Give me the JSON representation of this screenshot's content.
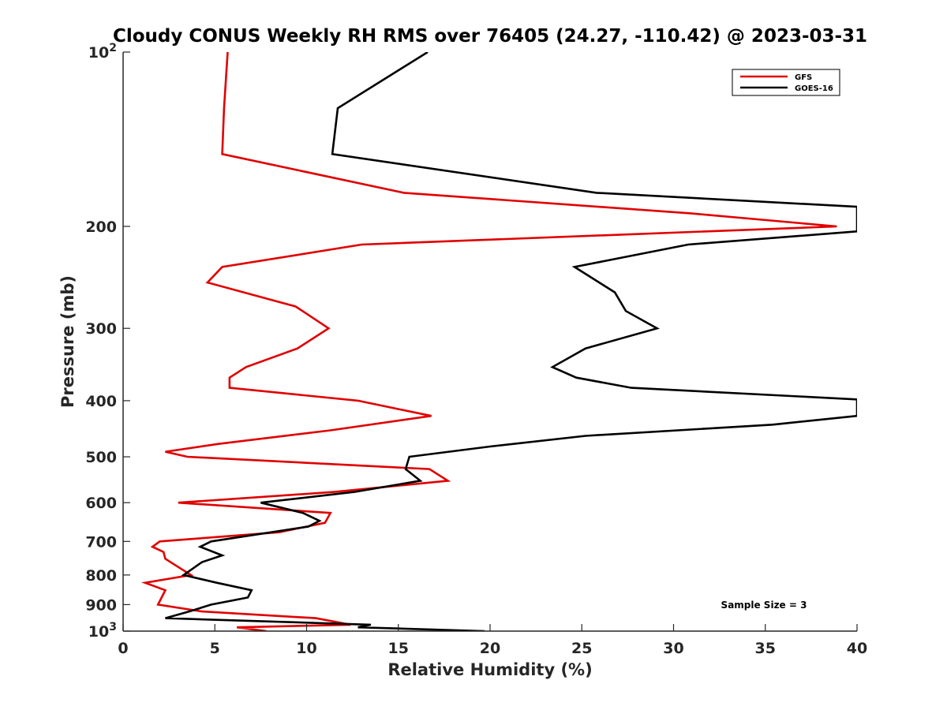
{
  "chart_data": {
    "type": "line",
    "title": "Cloudy CONUS Weekly RH RMS over 76405 (24.27, -110.42) @ 2023-03-31",
    "xlabel": "Relative Humidity (%)",
    "ylabel": "Pressure (mb)",
    "xlim": [
      0,
      40
    ],
    "ylim": [
      100,
      1000
    ],
    "y_scale": "log",
    "y_reversed": true,
    "x_ticks": [
      "0",
      "5",
      "10",
      "15",
      "20",
      "25",
      "30",
      "35",
      "40"
    ],
    "y_ticks": [
      {
        "value": 100,
        "base": "10",
        "exp": "2"
      },
      {
        "value": 200,
        "label": "200"
      },
      {
        "value": 300,
        "label": "300"
      },
      {
        "value": 400,
        "label": "400"
      },
      {
        "value": 500,
        "label": "500"
      },
      {
        "value": 600,
        "label": "600"
      },
      {
        "value": 700,
        "label": "700"
      },
      {
        "value": 800,
        "label": "800"
      },
      {
        "value": 900,
        "label": "900"
      },
      {
        "value": 1000,
        "base": "10",
        "exp": "3"
      }
    ],
    "legend_position": "top-right",
    "annotation": "Sample Size = 3",
    "series": [
      {
        "name": "GFS",
        "color": "#e00000",
        "points": [
          [
            5.7,
            100
          ],
          [
            5.5,
            125
          ],
          [
            5.4,
            150
          ],
          [
            15.3,
            175
          ],
          [
            31,
            190
          ],
          [
            38.9,
            200
          ],
          [
            13,
            215
          ],
          [
            5.4,
            235
          ],
          [
            4.6,
            250
          ],
          [
            9.4,
            275
          ],
          [
            11.2,
            300
          ],
          [
            9.5,
            325
          ],
          [
            6.7,
            350
          ],
          [
            5.8,
            365
          ],
          [
            5.8,
            380
          ],
          [
            12.8,
            400
          ],
          [
            16.8,
            425
          ],
          [
            11.3,
            450
          ],
          [
            5.2,
            475
          ],
          [
            2.3,
            490
          ],
          [
            3.5,
            500
          ],
          [
            16.7,
            525
          ],
          [
            17.7,
            550
          ],
          [
            11.5,
            575
          ],
          [
            3.0,
            600
          ],
          [
            11.3,
            625
          ],
          [
            11.0,
            650
          ],
          [
            8.5,
            675
          ],
          [
            2.0,
            700
          ],
          [
            1.6,
            715
          ],
          [
            2.2,
            730
          ],
          [
            2.3,
            750
          ],
          [
            3.0,
            775
          ],
          [
            3.7,
            800
          ],
          [
            1.2,
            825
          ],
          [
            2.3,
            850
          ],
          [
            2.1,
            875
          ],
          [
            1.9,
            900
          ],
          [
            4.3,
            925
          ],
          [
            10.5,
            950
          ],
          [
            12.4,
            975
          ],
          [
            6.2,
            985
          ],
          [
            7.8,
            1000
          ]
        ]
      },
      {
        "name": "GOES-16",
        "color": "#000000",
        "points": [
          [
            16.6,
            100
          ],
          [
            11.7,
            125
          ],
          [
            11.4,
            150
          ],
          [
            25.8,
            175
          ],
          [
            40,
            185
          ],
          [
            40,
            204
          ],
          [
            30.8,
            215
          ],
          [
            24.6,
            235
          ],
          [
            26.8,
            260
          ],
          [
            27.4,
            280
          ],
          [
            29.1,
            300
          ],
          [
            25.2,
            325
          ],
          [
            23.4,
            350
          ],
          [
            24.7,
            365
          ],
          [
            27.7,
            380
          ],
          [
            40,
            398
          ],
          [
            40,
            425
          ],
          [
            35.4,
            440
          ],
          [
            25.2,
            460
          ],
          [
            20.0,
            480
          ],
          [
            15.6,
            500
          ],
          [
            15.4,
            525
          ],
          [
            16.2,
            550
          ],
          [
            12.6,
            575
          ],
          [
            7.5,
            600
          ],
          [
            9.8,
            625
          ],
          [
            10.7,
            645
          ],
          [
            10.1,
            660
          ],
          [
            4.8,
            700
          ],
          [
            4.2,
            715
          ],
          [
            5.4,
            740
          ],
          [
            4.3,
            760
          ],
          [
            3.3,
            800
          ],
          [
            5.1,
            825
          ],
          [
            7.0,
            850
          ],
          [
            6.8,
            875
          ],
          [
            4.8,
            900
          ],
          [
            3.6,
            925
          ],
          [
            2.3,
            950
          ],
          [
            13.5,
            975
          ],
          [
            12.8,
            985
          ],
          [
            19.7,
            1000
          ]
        ]
      }
    ]
  }
}
